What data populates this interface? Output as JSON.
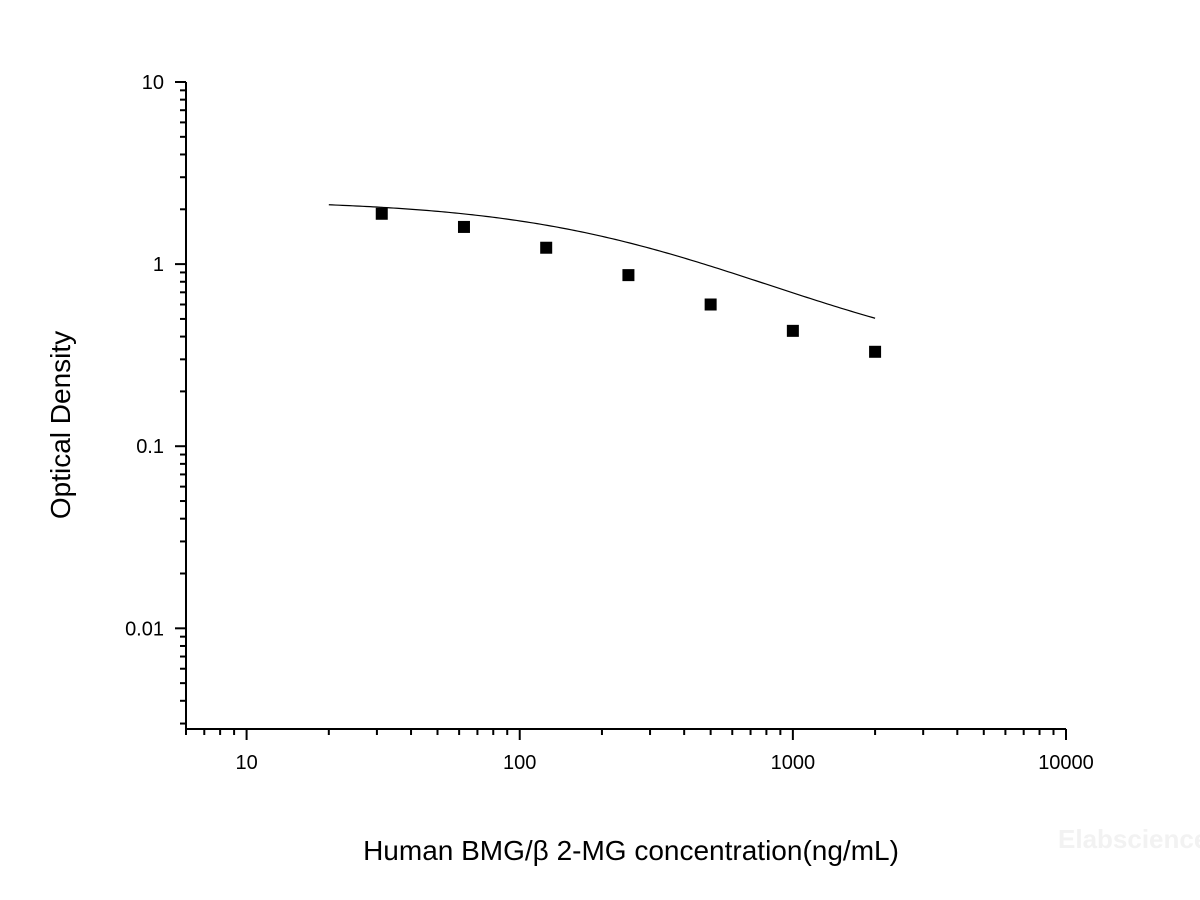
{
  "chart_data": {
    "type": "scatter",
    "xlabel": "Human BMG/β 2-MG concentration(ng/mL)",
    "ylabel": "Optical Density",
    "x_scale": "log",
    "y_scale": "log",
    "xlim": [
      6,
      10000
    ],
    "ylim": [
      0.0028,
      10
    ],
    "x_ticks": [
      {
        "value": 10,
        "label": "10"
      },
      {
        "value": 100,
        "label": "100"
      },
      {
        "value": 1000,
        "label": "1000"
      },
      {
        "value": 10000,
        "label": "10000"
      }
    ],
    "y_ticks": [
      {
        "value": 10,
        "label": "10"
      },
      {
        "value": 1,
        "label": "1"
      },
      {
        "value": 0.1,
        "label": "0.1"
      },
      {
        "value": 0.01,
        "label": "0.01"
      }
    ],
    "grid": false,
    "series": [
      {
        "marker": "square",
        "color": "#000000",
        "x": [
          31.25,
          62.5,
          125,
          250,
          500,
          1000,
          2000
        ],
        "y": [
          1.89,
          1.6,
          1.23,
          0.87,
          0.6,
          0.43,
          0.33
        ]
      }
    ],
    "fit_curve": {
      "type": "4PL",
      "color": "#000000",
      "x_range": [
        20,
        2000
      ],
      "params": {
        "A": 2.25,
        "D": 0.26,
        "C": 280,
        "B": 1.0
      }
    },
    "watermark": "Elabscience"
  }
}
